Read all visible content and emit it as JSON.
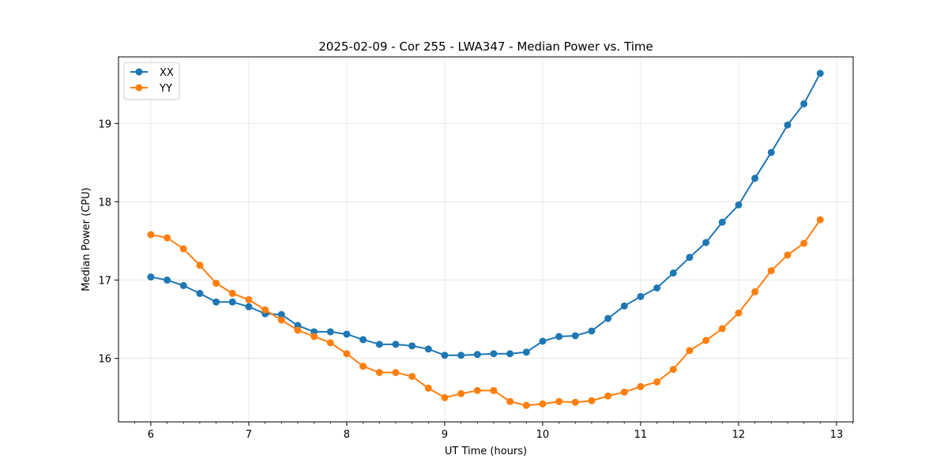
{
  "chart_data": {
    "type": "line",
    "title": "2025-02-09 - Cor 255 - LWA347 - Median Power vs. Time",
    "xlabel": "UT Time (hours)",
    "ylabel": "Median Power (CPU)",
    "xlim": [
      5.67,
      13.17
    ],
    "ylim": [
      15.19,
      19.85
    ],
    "xticks": [
      6,
      7,
      8,
      9,
      10,
      11,
      12,
      13
    ],
    "yticks": [
      16,
      17,
      18,
      19
    ],
    "grid": true,
    "legend_position": "top-left",
    "x": [
      6.0,
      6.1667,
      6.3333,
      6.5,
      6.6667,
      6.8333,
      7.0,
      7.1667,
      7.3333,
      7.5,
      7.6667,
      7.8333,
      8.0,
      8.1667,
      8.3333,
      8.5,
      8.6667,
      8.8333,
      9.0,
      9.1667,
      9.3333,
      9.5,
      9.6667,
      9.8333,
      10.0,
      10.1667,
      10.3333,
      10.5,
      10.6667,
      10.8333,
      11.0,
      11.1667,
      11.3333,
      11.5,
      11.6667,
      11.8333,
      12.0,
      12.1667,
      12.3333,
      12.5,
      12.6667,
      12.8333
    ],
    "series": [
      {
        "name": "XX",
        "color": "#1f77b4",
        "values": [
          17.04,
          17.0,
          16.93,
          16.83,
          16.72,
          16.72,
          16.66,
          16.57,
          16.56,
          16.42,
          16.34,
          16.34,
          16.31,
          16.24,
          16.18,
          16.18,
          16.16,
          16.12,
          16.04,
          16.04,
          16.05,
          16.06,
          16.06,
          16.08,
          16.22,
          16.28,
          16.29,
          16.35,
          16.51,
          16.67,
          16.79,
          16.9,
          17.09,
          17.29,
          17.48,
          17.74,
          17.96,
          18.3,
          18.63,
          18.98,
          19.25,
          19.64
        ]
      },
      {
        "name": "YY",
        "color": "#ff7f0e",
        "values": [
          17.58,
          17.54,
          17.4,
          17.19,
          16.96,
          16.83,
          16.75,
          16.62,
          16.49,
          16.36,
          16.28,
          16.2,
          16.06,
          15.9,
          15.82,
          15.82,
          15.77,
          15.62,
          15.5,
          15.55,
          15.59,
          15.59,
          15.45,
          15.4,
          15.42,
          15.45,
          15.44,
          15.46,
          15.52,
          15.57,
          15.64,
          15.7,
          15.86,
          16.1,
          16.23,
          16.38,
          16.58,
          16.85,
          17.12,
          17.32,
          17.47,
          17.77
        ]
      }
    ]
  }
}
